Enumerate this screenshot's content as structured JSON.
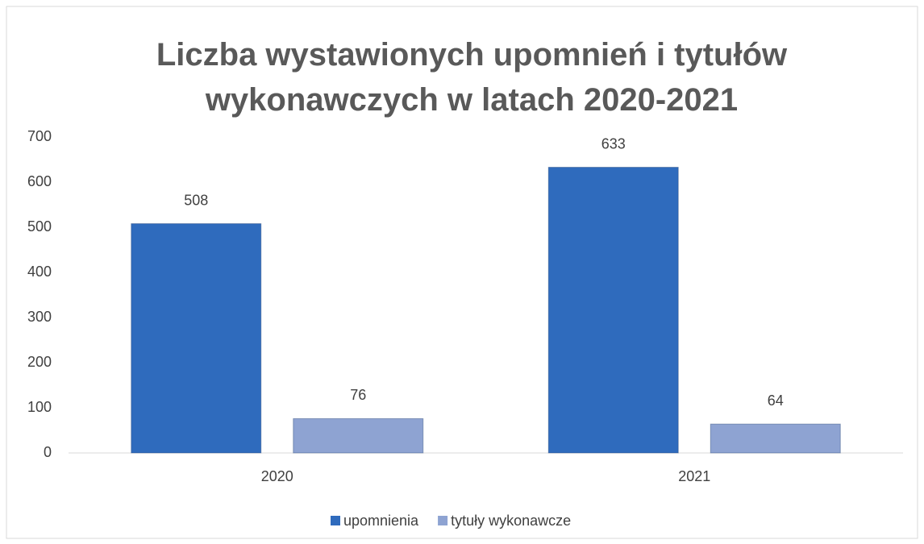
{
  "chart_data": {
    "type": "bar",
    "title": "Liczba wystawionych upomnień i tytułów wykonawczych w latach 2020-2021",
    "categories": [
      "2020",
      "2021"
    ],
    "series": [
      {
        "name": "upomnienia",
        "color": "#2f6bbd",
        "values": [
          508,
          633
        ]
      },
      {
        "name": "tytuły wykonawcze",
        "color": "#8ea3d2",
        "values": [
          76,
          64
        ]
      }
    ],
    "ylim": [
      0,
      700
    ],
    "yticks": [
      0,
      100,
      200,
      300,
      400,
      500,
      600,
      700
    ],
    "grid": false,
    "legend": "bottom"
  }
}
